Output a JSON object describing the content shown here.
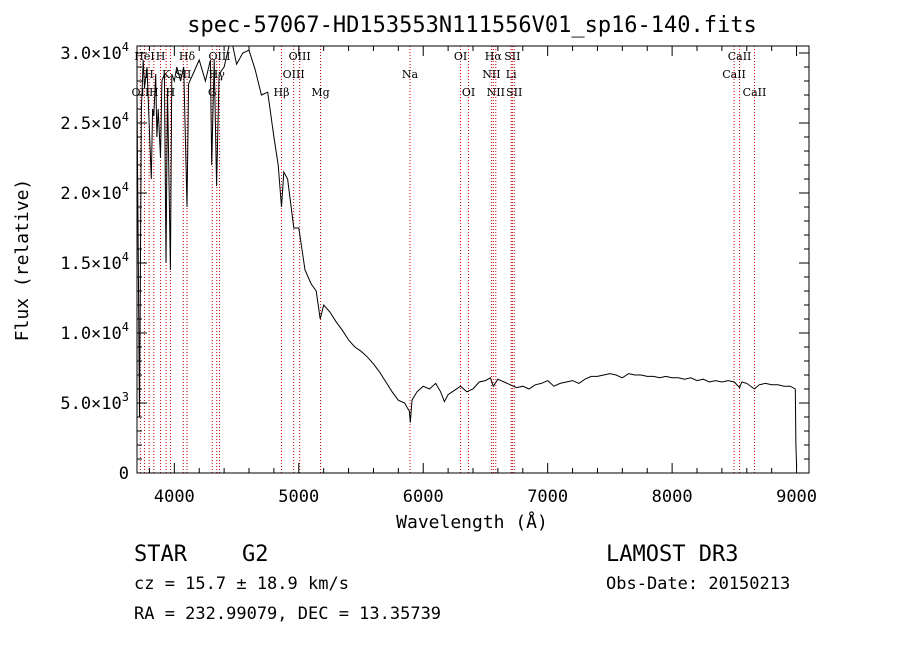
{
  "chart_data": {
    "type": "line",
    "title": "spec-57067-HD153553N111556V01_sp16-140.fits",
    "xlabel": "Wavelength (Å)",
    "ylabel": "Flux (relative)",
    "xlim": [
      3700,
      9100
    ],
    "ylim": [
      0,
      30500
    ],
    "x_ticks": [
      4000,
      5000,
      6000,
      7000,
      8000,
      9000
    ],
    "y_ticks": [
      {
        "value": 0,
        "mant": "0",
        "exp": ""
      },
      {
        "value": 5000,
        "mant": "5.0×10",
        "exp": "3"
      },
      {
        "value": 10000,
        "mant": "1.0×10",
        "exp": "4"
      },
      {
        "value": 15000,
        "mant": "1.5×10",
        "exp": "4"
      },
      {
        "value": 20000,
        "mant": "2.0×10",
        "exp": "4"
      },
      {
        "value": 25000,
        "mant": "2.5×10",
        "exp": "4"
      },
      {
        "value": 30000,
        "mant": "3.0×10",
        "exp": "4"
      }
    ],
    "series": [
      {
        "name": "flux",
        "points": [
          [
            3700,
            27000
          ],
          [
            3720,
            4000
          ],
          [
            3735,
            26000
          ],
          [
            3750,
            29500
          ],
          [
            3760,
            27500
          ],
          [
            3780,
            29000
          ],
          [
            3800,
            24500
          ],
          [
            3815,
            21000
          ],
          [
            3825,
            26000
          ],
          [
            3835,
            25500
          ],
          [
            3850,
            28500
          ],
          [
            3860,
            24000
          ],
          [
            3870,
            26000
          ],
          [
            3889,
            22500
          ],
          [
            3900,
            28000
          ],
          [
            3920,
            28500
          ],
          [
            3933,
            15000
          ],
          [
            3945,
            27500
          ],
          [
            3968,
            14500
          ],
          [
            3980,
            28500
          ],
          [
            4000,
            28000
          ],
          [
            4020,
            29000
          ],
          [
            4050,
            28000
          ],
          [
            4075,
            29000
          ],
          [
            4102,
            19000
          ],
          [
            4115,
            27800
          ],
          [
            4150,
            28500
          ],
          [
            4200,
            29500
          ],
          [
            4250,
            28000
          ],
          [
            4290,
            29500
          ],
          [
            4300,
            22000
          ],
          [
            4320,
            29500
          ],
          [
            4340,
            20500
          ],
          [
            4360,
            28500
          ],
          [
            4400,
            29000
          ],
          [
            4440,
            30500
          ],
          [
            4470,
            30500
          ],
          [
            4500,
            29200
          ],
          [
            4550,
            30000
          ],
          [
            4600,
            30200
          ],
          [
            4650,
            28800
          ],
          [
            4700,
            27000
          ],
          [
            4750,
            27200
          ],
          [
            4800,
            24000
          ],
          [
            4835,
            22000
          ],
          [
            4861,
            19000
          ],
          [
            4880,
            21500
          ],
          [
            4910,
            21000
          ],
          [
            4960,
            17500
          ],
          [
            5000,
            17500
          ],
          [
            5050,
            14500
          ],
          [
            5100,
            13500
          ],
          [
            5140,
            13000
          ],
          [
            5172,
            11000
          ],
          [
            5200,
            12000
          ],
          [
            5250,
            11500
          ],
          [
            5300,
            10800
          ],
          [
            5350,
            10200
          ],
          [
            5400,
            9500
          ],
          [
            5450,
            9000
          ],
          [
            5500,
            8700
          ],
          [
            5550,
            8300
          ],
          [
            5600,
            7800
          ],
          [
            5650,
            7200
          ],
          [
            5700,
            6500
          ],
          [
            5750,
            5800
          ],
          [
            5800,
            5200
          ],
          [
            5850,
            5000
          ],
          [
            5889,
            4400
          ],
          [
            5896,
            3600
          ],
          [
            5910,
            5200
          ],
          [
            5950,
            5800
          ],
          [
            6000,
            6200
          ],
          [
            6050,
            6000
          ],
          [
            6100,
            6400
          ],
          [
            6140,
            5800
          ],
          [
            6170,
            5100
          ],
          [
            6200,
            5600
          ],
          [
            6250,
            5900
          ],
          [
            6300,
            6200
          ],
          [
            6350,
            5800
          ],
          [
            6400,
            6000
          ],
          [
            6450,
            6500
          ],
          [
            6500,
            6600
          ],
          [
            6540,
            6800
          ],
          [
            6563,
            6200
          ],
          [
            6600,
            6700
          ],
          [
            6650,
            6500
          ],
          [
            6700,
            6300
          ],
          [
            6750,
            6100
          ],
          [
            6800,
            6200
          ],
          [
            6850,
            6000
          ],
          [
            6900,
            6300
          ],
          [
            6950,
            6400
          ],
          [
            7000,
            6600
          ],
          [
            7050,
            6200
          ],
          [
            7100,
            6400
          ],
          [
            7150,
            6500
          ],
          [
            7200,
            6600
          ],
          [
            7250,
            6400
          ],
          [
            7300,
            6700
          ],
          [
            7350,
            6900
          ],
          [
            7400,
            6900
          ],
          [
            7450,
            7000
          ],
          [
            7500,
            7100
          ],
          [
            7550,
            7000
          ],
          [
            7600,
            6800
          ],
          [
            7650,
            7100
          ],
          [
            7700,
            7000
          ],
          [
            7750,
            7000
          ],
          [
            7800,
            6900
          ],
          [
            7850,
            6900
          ],
          [
            7900,
            6800
          ],
          [
            7950,
            6900
          ],
          [
            8000,
            6800
          ],
          [
            8050,
            6800
          ],
          [
            8100,
            6700
          ],
          [
            8150,
            6800
          ],
          [
            8200,
            6600
          ],
          [
            8250,
            6700
          ],
          [
            8300,
            6500
          ],
          [
            8350,
            6600
          ],
          [
            8400,
            6500
          ],
          [
            8450,
            6600
          ],
          [
            8500,
            6500
          ],
          [
            8542,
            6100
          ],
          [
            8560,
            6500
          ],
          [
            8600,
            6400
          ],
          [
            8662,
            6000
          ],
          [
            8700,
            6300
          ],
          [
            8750,
            6400
          ],
          [
            8800,
            6300
          ],
          [
            8850,
            6300
          ],
          [
            8900,
            6200
          ],
          [
            8950,
            6200
          ],
          [
            8990,
            6000
          ],
          [
            8995,
            2000
          ],
          [
            9000,
            500
          ]
        ]
      }
    ],
    "lines": [
      {
        "wl": 3727,
        "label": "OII",
        "row": 2
      },
      {
        "wl": 3760,
        "label": "HeI",
        "row": 0
      },
      {
        "wl": 3797,
        "label": "H",
        "row": 1
      },
      {
        "wl": 3835,
        "label": "H",
        "row": 2
      },
      {
        "wl": 3889,
        "label": "H",
        "row": 0
      },
      {
        "wl": 3934,
        "label": "K",
        "row": 1
      },
      {
        "wl": 3969,
        "label": "H",
        "row": 2
      },
      {
        "wl": 4072,
        "label": "SII",
        "row": 1
      },
      {
        "wl": 4102,
        "label": "Hδ",
        "row": 0
      },
      {
        "wl": 4305,
        "label": "G",
        "row": 2
      },
      {
        "wl": 4341,
        "label": "Hγ",
        "row": 1
      },
      {
        "wl": 4363,
        "label": "OIII",
        "row": 0
      },
      {
        "wl": 4861,
        "label": "Hβ",
        "row": 2
      },
      {
        "wl": 4959,
        "label": "OIII",
        "row": 1
      },
      {
        "wl": 5007,
        "label": "OIII",
        "row": 0
      },
      {
        "wl": 5175,
        "label": "Mg",
        "row": 2
      },
      {
        "wl": 5894,
        "label": "Na",
        "row": 1
      },
      {
        "wl": 6300,
        "label": "OI",
        "row": 0
      },
      {
        "wl": 6364,
        "label": "OI",
        "row": 2
      },
      {
        "wl": 6548,
        "label": "NII",
        "row": 1
      },
      {
        "wl": 6563,
        "label": "Hα",
        "row": 0
      },
      {
        "wl": 6583,
        "label": "NII",
        "row": 2
      },
      {
        "wl": 6707,
        "label": "Li",
        "row": 1
      },
      {
        "wl": 6716,
        "label": "SII",
        "row": 0
      },
      {
        "wl": 6731,
        "label": "SII",
        "row": 2
      },
      {
        "wl": 8498,
        "label": "CaII",
        "row": 1
      },
      {
        "wl": 8542,
        "label": "CaII",
        "row": 0
      },
      {
        "wl": 8662,
        "label": "CaII",
        "row": 2
      }
    ]
  },
  "info": {
    "object_class": "STAR",
    "subclass": "G2",
    "survey": "LAMOST DR3",
    "cz": "cz = 15.7 ± 18.9 km/s",
    "obs_date": "Obs-Date: 20150213",
    "coords": "RA = 232.99079, DEC =  13.35739"
  },
  "colors": {
    "spectrum": "#000000",
    "line_markers": "#cc0000",
    "axes": "#000000"
  }
}
